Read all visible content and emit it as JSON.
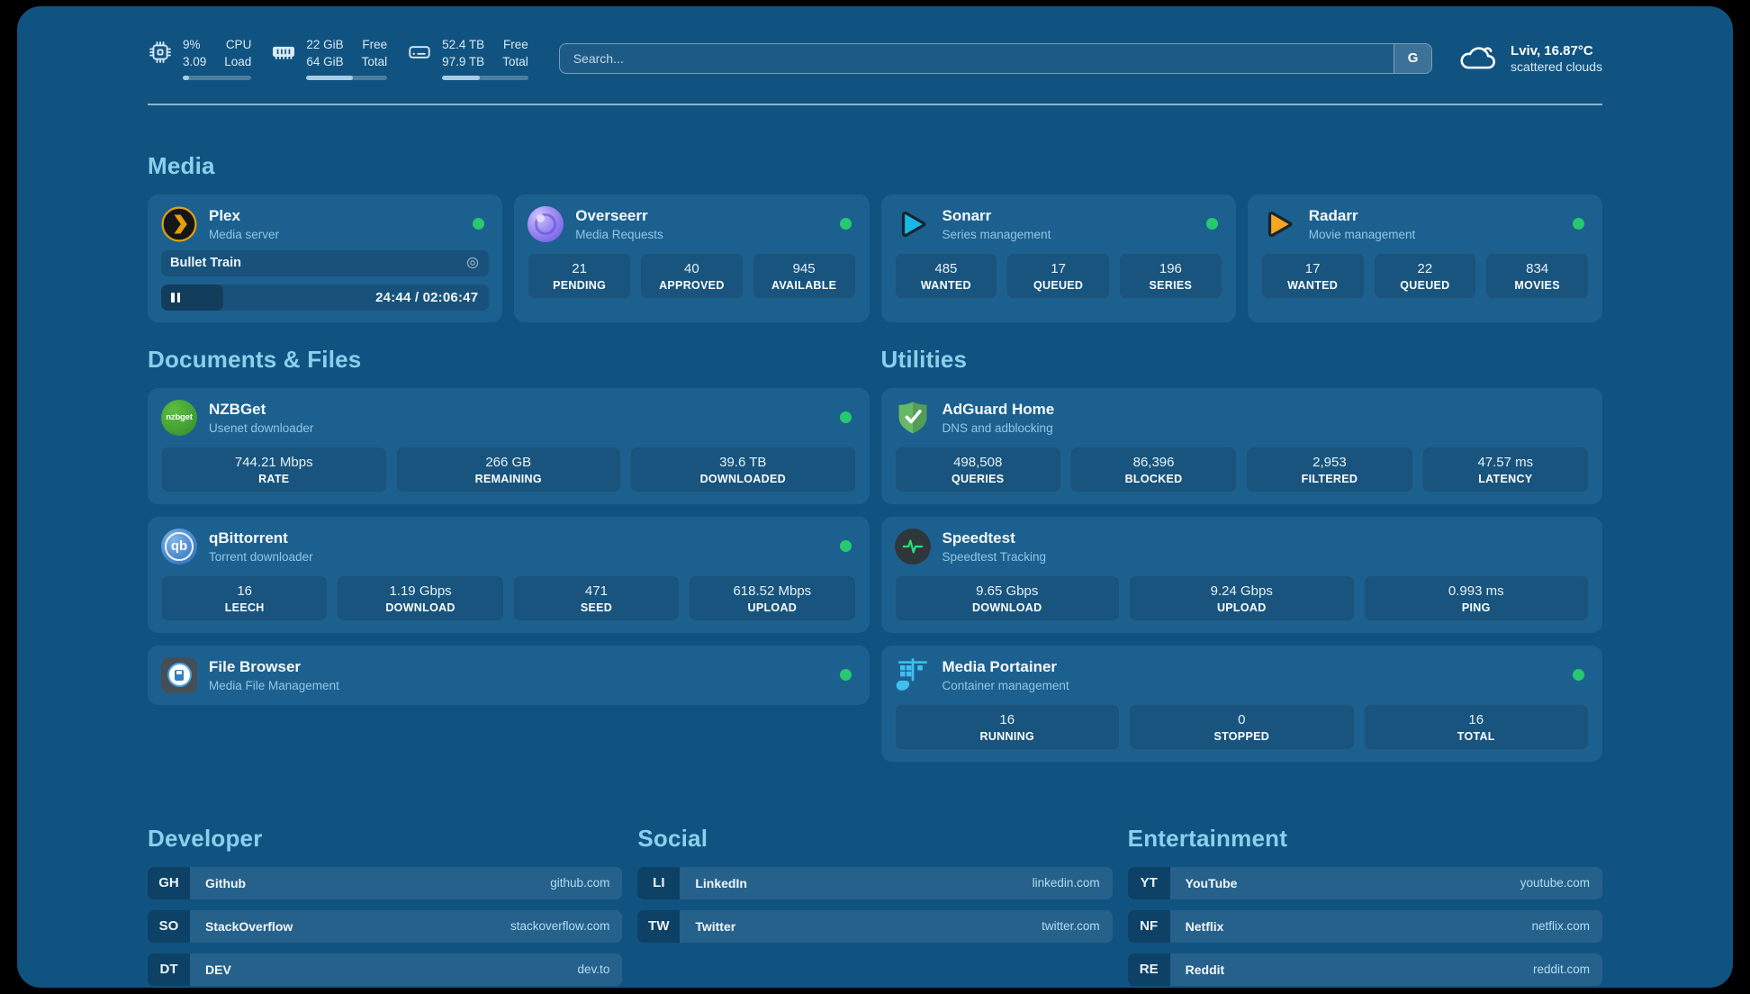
{
  "colors": {
    "page_bg": "#115380",
    "card_bg": "#1C608F",
    "status_online": "#26C96F",
    "section_header": "#8CCFED",
    "url_text": "#B3DCF3"
  },
  "topbar": {
    "resources": [
      {
        "icon": "cpu-icon",
        "values": [
          "9%",
          "3.09"
        ],
        "labels": [
          "CPU",
          "Load"
        ],
        "progress_pct": 9
      },
      {
        "icon": "ram-icon",
        "values": [
          "22 GiB",
          "64 GiB"
        ],
        "labels": [
          "Free",
          "Total"
        ],
        "progress_pct": 58
      },
      {
        "icon": "disk-icon",
        "values": [
          "52.4 TB",
          "97.9 TB"
        ],
        "labels": [
          "Free",
          "Total"
        ],
        "progress_pct": 44
      }
    ],
    "search": {
      "placeholder": "Search...",
      "engine_button": "G"
    },
    "weather": {
      "icon": "cloud-icon",
      "summary": "Lviv, 16.87°C",
      "condition": "scattered clouds"
    }
  },
  "media": {
    "header": "Media",
    "cards": [
      {
        "icon": "plex-icon",
        "name": "Plex",
        "subtitle": "Media server",
        "online": true,
        "now_playing": {
          "title": "Bullet Train",
          "state": "paused",
          "time": "24:44 / 02:06:47",
          "progress_pct": 19
        }
      },
      {
        "icon": "overseerr-icon",
        "name": "Overseerr",
        "subtitle": "Media Requests",
        "online": true,
        "stats": [
          {
            "value": "21",
            "label": "PENDING"
          },
          {
            "value": "40",
            "label": "APPROVED"
          },
          {
            "value": "945",
            "label": "AVAILABLE"
          }
        ]
      },
      {
        "icon": "sonarr-icon",
        "name": "Sonarr",
        "subtitle": "Series management",
        "online": true,
        "stats": [
          {
            "value": "485",
            "label": "WANTED"
          },
          {
            "value": "17",
            "label": "QUEUED"
          },
          {
            "value": "196",
            "label": "SERIES"
          }
        ]
      },
      {
        "icon": "radarr-icon",
        "name": "Radarr",
        "subtitle": "Movie management",
        "online": true,
        "stats": [
          {
            "value": "17",
            "label": "WANTED"
          },
          {
            "value": "22",
            "label": "QUEUED"
          },
          {
            "value": "834",
            "label": "MOVIES"
          }
        ]
      }
    ]
  },
  "documents": {
    "header": "Documents & Files",
    "cards": [
      {
        "icon": "nzbget-icon",
        "icon_text": "nzbget",
        "name": "NZBGet",
        "subtitle": "Usenet downloader",
        "online": true,
        "stats": [
          {
            "value": "744.21 Mbps",
            "label": "RATE"
          },
          {
            "value": "266 GB",
            "label": "REMAINING"
          },
          {
            "value": "39.6 TB",
            "label": "DOWNLOADED"
          }
        ]
      },
      {
        "icon": "qbittorrent-icon",
        "icon_text": "qb",
        "name": "qBittorrent",
        "subtitle": "Torrent downloader",
        "online": true,
        "stats": [
          {
            "value": "16",
            "label": "LEECH"
          },
          {
            "value": "1.19 Gbps",
            "label": "DOWNLOAD"
          },
          {
            "value": "471",
            "label": "SEED"
          },
          {
            "value": "618.52 Mbps",
            "label": "UPLOAD"
          }
        ]
      },
      {
        "icon": "filebrowser-icon",
        "name": "File Browser",
        "subtitle": "Media File Management",
        "online": true
      }
    ]
  },
  "utilities": {
    "header": "Utilities",
    "cards": [
      {
        "icon": "adguard-icon",
        "name": "AdGuard Home",
        "subtitle": "DNS and adblocking",
        "online": false,
        "stats": [
          {
            "value": "498,508",
            "label": "QUERIES"
          },
          {
            "value": "86,396",
            "label": "BLOCKED"
          },
          {
            "value": "2,953",
            "label": "FILTERED"
          },
          {
            "value": "47.57 ms",
            "label": "LATENCY"
          }
        ]
      },
      {
        "icon": "speedtest-icon",
        "name": "Speedtest",
        "subtitle": "Speedtest Tracking",
        "online": false,
        "stats": [
          {
            "value": "9.65 Gbps",
            "label": "DOWNLOAD"
          },
          {
            "value": "9.24 Gbps",
            "label": "UPLOAD"
          },
          {
            "value": "0.993 ms",
            "label": "PING"
          }
        ]
      },
      {
        "icon": "portainer-icon",
        "name": "Media Portainer",
        "subtitle": "Container management",
        "online": true,
        "stats": [
          {
            "value": "16",
            "label": "RUNNING"
          },
          {
            "value": "0",
            "label": "STOPPED"
          },
          {
            "value": "16",
            "label": "TOTAL"
          }
        ]
      }
    ]
  },
  "bookmarks": {
    "groups": [
      {
        "header": "Developer",
        "items": [
          {
            "abbr": "GH",
            "name": "Github",
            "url": "github.com"
          },
          {
            "abbr": "SO",
            "name": "StackOverflow",
            "url": "stackoverflow.com"
          },
          {
            "abbr": "DT",
            "name": "DEV",
            "url": "dev.to"
          }
        ]
      },
      {
        "header": "Social",
        "items": [
          {
            "abbr": "LI",
            "name": "LinkedIn",
            "url": "linkedin.com"
          },
          {
            "abbr": "TW",
            "name": "Twitter",
            "url": "twitter.com"
          }
        ]
      },
      {
        "header": "Entertainment",
        "items": [
          {
            "abbr": "YT",
            "name": "YouTube",
            "url": "youtube.com"
          },
          {
            "abbr": "NF",
            "name": "Netflix",
            "url": "netflix.com"
          },
          {
            "abbr": "RE",
            "name": "Reddit",
            "url": "reddit.com"
          }
        ]
      }
    ]
  }
}
